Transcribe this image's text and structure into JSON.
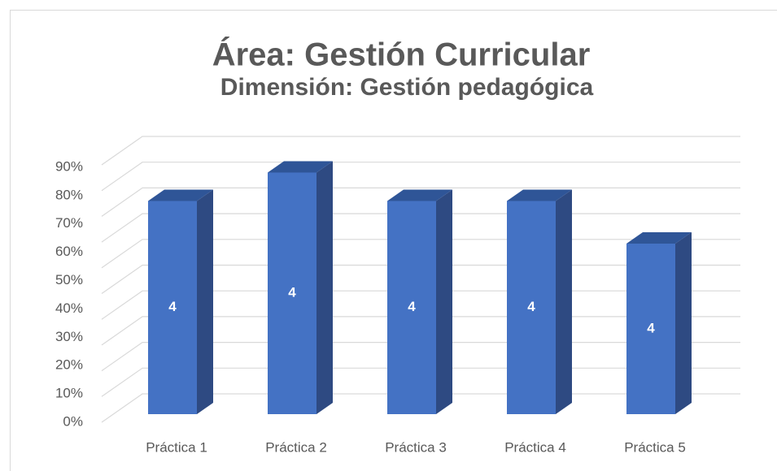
{
  "chart_data": {
    "type": "bar3d",
    "title": "Área: Gestión Curricular",
    "subtitle": "Dimensión: Gestión pedagógica",
    "categories": [
      "Práctica 1",
      "Práctica 2",
      "Práctica 3",
      "Práctica 4",
      "Práctica 5"
    ],
    "values": [
      75,
      85,
      75,
      75,
      60
    ],
    "bar_labels": [
      "4",
      "4",
      "4",
      "4",
      "4"
    ],
    "color": "#4472c4",
    "ylim": [
      0,
      100
    ],
    "yticks": [
      {
        "value": 0,
        "label": "0%"
      },
      {
        "value": 10,
        "label": "10%"
      },
      {
        "value": 20,
        "label": "20%"
      },
      {
        "value": 30,
        "label": "30%"
      },
      {
        "value": 40,
        "label": "40%"
      },
      {
        "value": 50,
        "label": "50%"
      },
      {
        "value": 60,
        "label": "60%"
      },
      {
        "value": 70,
        "label": "70%"
      },
      {
        "value": 80,
        "label": "80%"
      },
      {
        "value": 90,
        "label": "90%"
      }
    ],
    "grid": true
  }
}
